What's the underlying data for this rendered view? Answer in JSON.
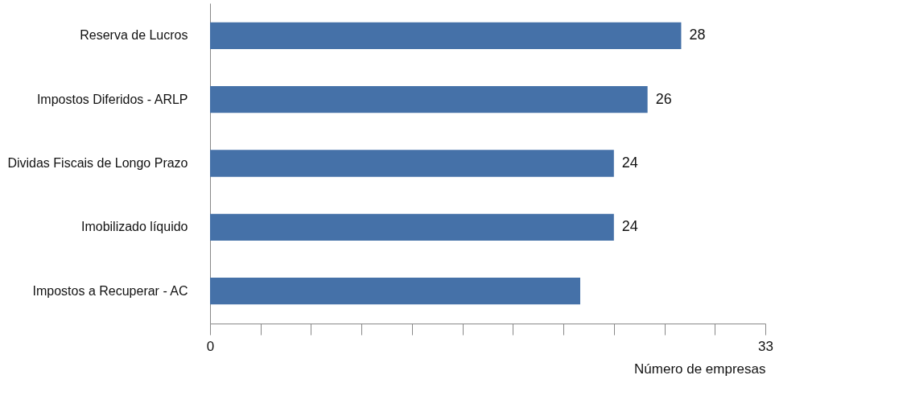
{
  "chart_data": {
    "type": "bar",
    "orientation": "horizontal",
    "categories": [
      "Reserva de Lucros",
      "Impostos Diferidos - ARLP",
      "Dividas Fiscais de Longo Prazo",
      "Imobilizado líquido",
      "Impostos a Recuperar - AC"
    ],
    "values": [
      28,
      26,
      24,
      24,
      22
    ],
    "value_labels": [
      "28",
      "26",
      "24",
      "24",
      null
    ],
    "color": "#4571a8",
    "xlabel": "Número de empresas",
    "xlim": [
      0,
      33
    ],
    "xticks": [
      0,
      {
        "value": 3,
        "label": null
      },
      {
        "value": 6,
        "label": null
      },
      {
        "value": 9,
        "label": null
      },
      {
        "value": 12,
        "label": null
      },
      {
        "value": 15,
        "label": null
      },
      {
        "value": 18,
        "label": null
      },
      {
        "value": 21,
        "label": null
      },
      {
        "value": 24,
        "label": null
      },
      {
        "value": 27,
        "label": null
      },
      {
        "value": 30,
        "label": null
      },
      33
    ],
    "grid": false
  }
}
